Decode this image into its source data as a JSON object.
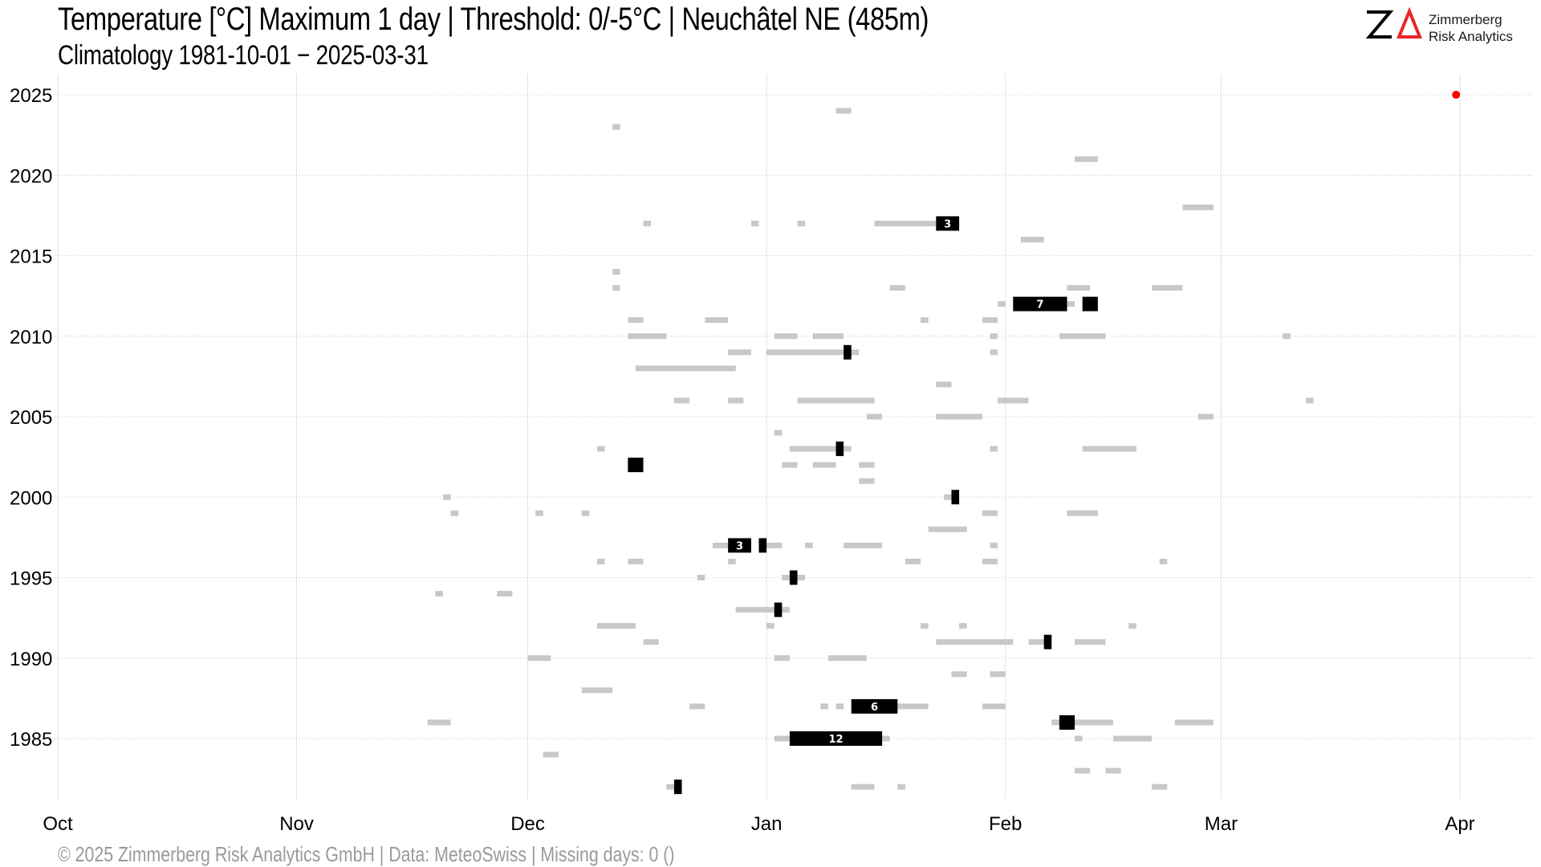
{
  "title": "Temperature [°C] Maximum 1 day | Threshold: 0/-5°C | Neuchâtel  NE (485m)",
  "subtitle": "Climatology 1981-10-01 − 2025-03-31",
  "footer": "©  2025 Zimmerberg Risk Analytics GmbH | Data: MeteoSwiss | Missing days: 0 ()",
  "logo": {
    "line1": "Zimmerberg",
    "line2": "Risk Analytics",
    "accent": "#e8262a"
  },
  "chart_data": {
    "type": "timeline",
    "title": "Temperature [°C] Maximum 1 day | Threshold: 0/-5°C | Neuchâtel  NE (485m)",
    "subtitle": "Climatology 1981-10-01 − 2025-03-31",
    "x_axis": {
      "start": "Oct 01",
      "end": "Apr 01",
      "tick_labels": [
        "Oct",
        "Nov",
        "Dec",
        "Jan",
        "Feb",
        "Mar",
        "Apr"
      ],
      "tick_days": [
        0,
        31,
        61,
        92,
        123,
        151,
        182
      ]
    },
    "y_axis": {
      "ylim": [
        1981,
        2025
      ],
      "tick_values": [
        1985,
        1990,
        1995,
        2000,
        2005,
        2010,
        2015,
        2020,
        2025
      ]
    },
    "grid": true,
    "colors": {
      "below_0": "#c8c8c8",
      "below_minus5": "#000000",
      "marker": "#ff0000"
    },
    "marker": {
      "year": 2025,
      "date": "Mar 31"
    },
    "series": [
      {
        "name": "",
        "color": "#c8c8c8",
        "spells": [
          {
            "year": 2024,
            "start": "Jan 10",
            "end": "Jan 11"
          },
          {
            "year": 2023,
            "start": "Dec 12",
            "end": "Dec 12"
          },
          {
            "year": 2021,
            "start": "Feb 10",
            "end": "Feb 12"
          },
          {
            "year": 2018,
            "start": "Feb 24",
            "end": "Feb 27"
          },
          {
            "year": 2017,
            "start": "Dec 16",
            "end": "Dec 16"
          },
          {
            "year": 2017,
            "start": "Dec 30",
            "end": "Dec 30"
          },
          {
            "year": 2017,
            "start": "Jan 05",
            "end": "Jan 05"
          },
          {
            "year": 2017,
            "start": "Jan 15",
            "end": "Jan 22"
          },
          {
            "year": 2016,
            "start": "Feb 03",
            "end": "Feb 05"
          },
          {
            "year": 2014,
            "start": "Dec 12",
            "end": "Dec 12"
          },
          {
            "year": 2013,
            "start": "Dec 12",
            "end": "Dec 12"
          },
          {
            "year": 2013,
            "start": "Jan 17",
            "end": "Jan 18"
          },
          {
            "year": 2013,
            "start": "Feb 09",
            "end": "Feb 11"
          },
          {
            "year": 2013,
            "start": "Feb 20",
            "end": "Feb 23"
          },
          {
            "year": 2012,
            "start": "Jan 31",
            "end": "Jan 31"
          },
          {
            "year": 2012,
            "start": "Feb 08",
            "end": "Feb 09"
          },
          {
            "year": 2011,
            "start": "Dec 14",
            "end": "Dec 15"
          },
          {
            "year": 2011,
            "start": "Dec 24",
            "end": "Dec 26"
          },
          {
            "year": 2011,
            "start": "Jan 21",
            "end": "Jan 21"
          },
          {
            "year": 2011,
            "start": "Jan 29",
            "end": "Jan 30"
          },
          {
            "year": 2010,
            "start": "Dec 14",
            "end": "Dec 18"
          },
          {
            "year": 2010,
            "start": "Jan 02",
            "end": "Jan 04"
          },
          {
            "year": 2010,
            "start": "Jan 07",
            "end": "Jan 10"
          },
          {
            "year": 2010,
            "start": "Jan 30",
            "end": "Jan 30"
          },
          {
            "year": 2010,
            "start": "Feb 08",
            "end": "Feb 13"
          },
          {
            "year": 2010,
            "start": "Mar 09",
            "end": "Mar 09"
          },
          {
            "year": 2009,
            "start": "Dec 27",
            "end": "Dec 29"
          },
          {
            "year": 2009,
            "start": "Jan 01",
            "end": "Jan 12"
          },
          {
            "year": 2009,
            "start": "Jan 30",
            "end": "Jan 30"
          },
          {
            "year": 2008,
            "start": "Dec 15",
            "end": "Dec 27"
          },
          {
            "year": 2007,
            "start": "Jan 23",
            "end": "Jan 24"
          },
          {
            "year": 2006,
            "start": "Dec 20",
            "end": "Dec 21"
          },
          {
            "year": 2006,
            "start": "Dec 27",
            "end": "Dec 28"
          },
          {
            "year": 2006,
            "start": "Jan 05",
            "end": "Jan 14"
          },
          {
            "year": 2006,
            "start": "Jan 31",
            "end": "Feb 03"
          },
          {
            "year": 2006,
            "start": "Mar 12",
            "end": "Mar 12"
          },
          {
            "year": 2005,
            "start": "Jan 14",
            "end": "Jan 15"
          },
          {
            "year": 2005,
            "start": "Jan 23",
            "end": "Jan 28"
          },
          {
            "year": 2005,
            "start": "Feb 26",
            "end": "Feb 27"
          },
          {
            "year": 2004,
            "start": "Jan 02",
            "end": "Jan 02"
          },
          {
            "year": 2003,
            "start": "Dec 10",
            "end": "Dec 10"
          },
          {
            "year": 2003,
            "start": "Jan 04",
            "end": "Jan 11"
          },
          {
            "year": 2003,
            "start": "Jan 30",
            "end": "Jan 30"
          },
          {
            "year": 2003,
            "start": "Feb 11",
            "end": "Feb 17"
          },
          {
            "year": 2002,
            "start": "Jan 03",
            "end": "Jan 04"
          },
          {
            "year": 2002,
            "start": "Jan 07",
            "end": "Jan 09"
          },
          {
            "year": 2002,
            "start": "Jan 13",
            "end": "Jan 14"
          },
          {
            "year": 2001,
            "start": "Jan 13",
            "end": "Jan 14"
          },
          {
            "year": 2000,
            "start": "Nov 20",
            "end": "Nov 20"
          },
          {
            "year": 2000,
            "start": "Jan 24",
            "end": "Jan 24"
          },
          {
            "year": 1999,
            "start": "Nov 21",
            "end": "Nov 21"
          },
          {
            "year": 1999,
            "start": "Dec 02",
            "end": "Dec 02"
          },
          {
            "year": 1999,
            "start": "Dec 08",
            "end": "Dec 08"
          },
          {
            "year": 1999,
            "start": "Jan 29",
            "end": "Jan 30"
          },
          {
            "year": 1999,
            "start": "Feb 09",
            "end": "Feb 12"
          },
          {
            "year": 1998,
            "start": "Jan 22",
            "end": "Jan 26"
          },
          {
            "year": 1997,
            "start": "Dec 25",
            "end": "Dec 26"
          },
          {
            "year": 1997,
            "start": "Jan 01",
            "end": "Jan 02"
          },
          {
            "year": 1997,
            "start": "Jan 06",
            "end": "Jan 06"
          },
          {
            "year": 1997,
            "start": "Jan 11",
            "end": "Jan 15"
          },
          {
            "year": 1997,
            "start": "Jan 30",
            "end": "Jan 30"
          },
          {
            "year": 1996,
            "start": "Dec 10",
            "end": "Dec 10"
          },
          {
            "year": 1996,
            "start": "Dec 14",
            "end": "Dec 15"
          },
          {
            "year": 1996,
            "start": "Dec 27",
            "end": "Dec 27"
          },
          {
            "year": 1996,
            "start": "Jan 19",
            "end": "Jan 20"
          },
          {
            "year": 1996,
            "start": "Jan 29",
            "end": "Jan 30"
          },
          {
            "year": 1996,
            "start": "Feb 21",
            "end": "Feb 21"
          },
          {
            "year": 1995,
            "start": "Dec 23",
            "end": "Dec 23"
          },
          {
            "year": 1995,
            "start": "Jan 03",
            "end": "Jan 05"
          },
          {
            "year": 1994,
            "start": "Nov 19",
            "end": "Nov 19"
          },
          {
            "year": 1994,
            "start": "Nov 27",
            "end": "Nov 28"
          },
          {
            "year": 1993,
            "start": "Dec 28",
            "end": "Jan 03"
          },
          {
            "year": 1992,
            "start": "Dec 10",
            "end": "Dec 14"
          },
          {
            "year": 1992,
            "start": "Jan 01",
            "end": "Jan 01"
          },
          {
            "year": 1992,
            "start": "Jan 21",
            "end": "Jan 21"
          },
          {
            "year": 1992,
            "start": "Jan 26",
            "end": "Jan 26"
          },
          {
            "year": 1992,
            "start": "Feb 17",
            "end": "Feb 17"
          },
          {
            "year": 1991,
            "start": "Dec 16",
            "end": "Dec 17"
          },
          {
            "year": 1991,
            "start": "Jan 23",
            "end": "Feb 01"
          },
          {
            "year": 1991,
            "start": "Feb 04",
            "end": "Feb 05"
          },
          {
            "year": 1991,
            "start": "Feb 10",
            "end": "Feb 13"
          },
          {
            "year": 1990,
            "start": "Dec 01",
            "end": "Dec 03"
          },
          {
            "year": 1990,
            "start": "Jan 02",
            "end": "Jan 03"
          },
          {
            "year": 1990,
            "start": "Jan 09",
            "end": "Jan 13"
          },
          {
            "year": 1989,
            "start": "Jan 25",
            "end": "Jan 26"
          },
          {
            "year": 1989,
            "start": "Jan 30",
            "end": "Jan 31"
          },
          {
            "year": 1988,
            "start": "Dec 08",
            "end": "Dec 11"
          },
          {
            "year": 1987,
            "start": "Dec 22",
            "end": "Dec 23"
          },
          {
            "year": 1987,
            "start": "Jan 08",
            "end": "Jan 08"
          },
          {
            "year": 1987,
            "start": "Jan 10",
            "end": "Jan 10"
          },
          {
            "year": 1987,
            "start": "Jan 17",
            "end": "Jan 21"
          },
          {
            "year": 1987,
            "start": "Jan 29",
            "end": "Jan 31"
          },
          {
            "year": 1986,
            "start": "Nov 18",
            "end": "Nov 20"
          },
          {
            "year": 1986,
            "start": "Feb 07",
            "end": "Feb 14"
          },
          {
            "year": 1986,
            "start": "Feb 23",
            "end": "Feb 27"
          },
          {
            "year": 1985,
            "start": "Jan 02",
            "end": "Jan 03"
          },
          {
            "year": 1985,
            "start": "Jan 16",
            "end": "Jan 16"
          },
          {
            "year": 1985,
            "start": "Feb 10",
            "end": "Feb 10"
          },
          {
            "year": 1985,
            "start": "Feb 15",
            "end": "Feb 19"
          },
          {
            "year": 1984,
            "start": "Dec 03",
            "end": "Dec 04"
          },
          {
            "year": 1983,
            "start": "Feb 10",
            "end": "Feb 11"
          },
          {
            "year": 1983,
            "start": "Feb 14",
            "end": "Feb 15"
          },
          {
            "year": 1982,
            "start": "Dec 19",
            "end": "Dec 19"
          },
          {
            "year": 1982,
            "start": "Jan 12",
            "end": "Jan 14"
          },
          {
            "year": 1982,
            "start": "Jan 18",
            "end": "Jan 18"
          },
          {
            "year": 1982,
            "start": "Feb 20",
            "end": "Feb 21"
          }
        ]
      },
      {
        "name": "",
        "color": "#000000",
        "spells": [
          {
            "year": 2017,
            "start": "Jan 23",
            "end": "Jan 25",
            "label": "3"
          },
          {
            "year": 2012,
            "start": "Feb 02",
            "end": "Feb 08",
            "label": "7"
          },
          {
            "year": 2012,
            "start": "Feb 11",
            "end": "Feb 12"
          },
          {
            "year": 2009,
            "start": "Jan 11",
            "end": "Jan 11"
          },
          {
            "year": 2003,
            "start": "Jan 10",
            "end": "Jan 10"
          },
          {
            "year": 2002,
            "start": "Dec 14",
            "end": "Dec 15"
          },
          {
            "year": 2000,
            "start": "Jan 25",
            "end": "Jan 25"
          },
          {
            "year": 1997,
            "start": "Dec 27",
            "end": "Dec 29",
            "label": "3"
          },
          {
            "year": 1997,
            "start": "Dec 31",
            "end": "Dec 31"
          },
          {
            "year": 1995,
            "start": "Jan 04",
            "end": "Jan 04"
          },
          {
            "year": 1993,
            "start": "Jan 02",
            "end": "Jan 02"
          },
          {
            "year": 1991,
            "start": "Feb 06",
            "end": "Feb 06"
          },
          {
            "year": 1987,
            "start": "Jan 12",
            "end": "Jan 17",
            "label": "6"
          },
          {
            "year": 1986,
            "start": "Feb 08",
            "end": "Feb 09"
          },
          {
            "year": 1985,
            "start": "Jan 04",
            "end": "Jan 15",
            "label": "12"
          },
          {
            "year": 1982,
            "start": "Dec 20",
            "end": "Dec 20"
          }
        ]
      }
    ]
  }
}
